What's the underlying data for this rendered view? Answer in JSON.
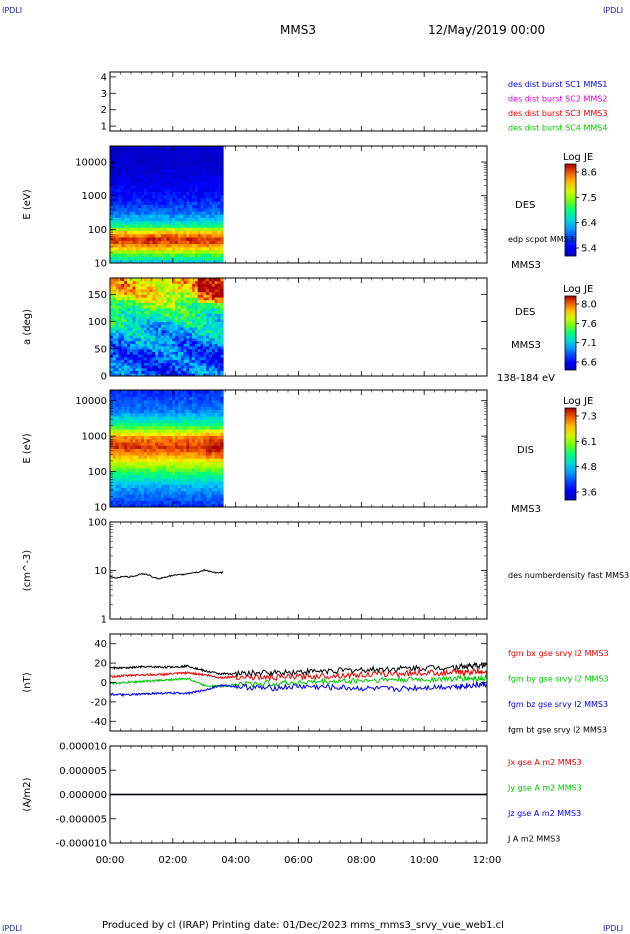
{
  "header": {
    "corner_left": "IPDLI",
    "corner_right": "IPDLI",
    "spacecraft": "MMS3",
    "date": "12/May/2019 00:00"
  },
  "footer": {
    "text": "Produced by cl (IRAP)   Printing date: 01/Dec/2023   mms_mms3_srvy_vue_web1.cl",
    "corner_left": "IPDLI",
    "corner_right": "IPDLI"
  },
  "colors": {
    "blue": "#0000ee",
    "magenta": "#dd00dd",
    "red": "#ee0000",
    "green": "#00cc00",
    "black": "#000000"
  },
  "chart_data": [
    {
      "type": "scatter",
      "id": "burst",
      "yticks": [
        "1",
        "2",
        "3",
        "4"
      ],
      "ylim": [
        0.7,
        4.3
      ],
      "legend": [
        {
          "text": "des dist burst SC1 MMS1",
          "color": "#0000ee"
        },
        {
          "text": "des dist burst SC2 MMS2",
          "color": "#dd00dd"
        },
        {
          "text": "des dist burst SC3 MMS3",
          "color": "#ee0000"
        },
        {
          "text": "des dist burst SC4 MMS4",
          "color": "#00cc00"
        }
      ]
    },
    {
      "type": "heatmap",
      "id": "des-energy",
      "ylabel": "E (eV)",
      "yscale": "log",
      "ylim": [
        10,
        30000
      ],
      "yticks": [
        "10",
        "100",
        "1000",
        "10000"
      ],
      "x_range_hours": [
        0,
        3.6
      ],
      "colorbar": {
        "title": "Log JE",
        "ticks": [
          "8.6",
          "7.5",
          "6.4",
          "5.4"
        ],
        "range": [
          5.4,
          8.6
        ]
      },
      "labels": [
        "DES",
        "edp scpot MMS3",
        "MMS3"
      ],
      "profile": [
        [
          10,
          6.5
        ],
        [
          18,
          7.2
        ],
        [
          30,
          8.0
        ],
        [
          50,
          8.5
        ],
        [
          80,
          8.0
        ],
        [
          130,
          7.0
        ],
        [
          200,
          6.5
        ],
        [
          400,
          6.1
        ],
        [
          1000,
          5.8
        ],
        [
          10000,
          5.4
        ],
        [
          30000,
          5.4
        ]
      ]
    },
    {
      "type": "heatmap",
      "id": "des-pitch",
      "ylabel": "a (deg)",
      "ylim": [
        0,
        180
      ],
      "yticks": [
        "0",
        "50",
        "100",
        "150"
      ],
      "x_range_hours": [
        0,
        3.6
      ],
      "colorbar": {
        "title": "Log JE",
        "ticks": [
          "8.0",
          "7.6",
          "7.1",
          "6.6"
        ],
        "range": [
          6.6,
          8.0
        ]
      },
      "labels": [
        "DES",
        "MMS3",
        "138-184 eV"
      ],
      "profile": [
        [
          0,
          6.9
        ],
        [
          40,
          6.9
        ],
        [
          90,
          7.1
        ],
        [
          130,
          7.4
        ],
        [
          160,
          7.7
        ],
        [
          180,
          7.7
        ]
      ]
    },
    {
      "type": "heatmap",
      "id": "dis-energy",
      "ylabel": "E (eV)",
      "yscale": "log",
      "ylim": [
        10,
        20000
      ],
      "yticks": [
        "10",
        "100",
        "1000",
        "10000"
      ],
      "x_range_hours": [
        0,
        3.6
      ],
      "colorbar": {
        "title": "Log JE",
        "ticks": [
          "7.3",
          "6.1",
          "4.8",
          "3.6"
        ],
        "range": [
          3.6,
          7.3
        ]
      },
      "labels": [
        "DIS",
        "MMS3"
      ],
      "profile": [
        [
          10,
          4.2
        ],
        [
          40,
          4.8
        ],
        [
          100,
          5.6
        ],
        [
          250,
          6.5
        ],
        [
          500,
          7.1
        ],
        [
          900,
          6.8
        ],
        [
          2000,
          5.5
        ],
        [
          5000,
          4.6
        ],
        [
          20000,
          4.2
        ]
      ]
    },
    {
      "type": "line",
      "id": "density",
      "ylabel": "(cm^-3)",
      "yscale": "log",
      "ylim": [
        1,
        100
      ],
      "yticks": [
        "1",
        "10",
        "100"
      ],
      "series": [
        {
          "name": "des numberdensity fast MMS3",
          "color": "#000000",
          "x": [
            0.0,
            0.2,
            0.4,
            0.6,
            0.8,
            1.0,
            1.2,
            1.4,
            1.6,
            1.8,
            2.0,
            2.2,
            2.4,
            2.6,
            2.8,
            3.0,
            3.2,
            3.4,
            3.6
          ],
          "y": [
            7.4,
            7.0,
            7.6,
            7.3,
            7.8,
            8.6,
            8.2,
            7.1,
            6.8,
            7.5,
            7.9,
            8.1,
            8.4,
            9.0,
            9.2,
            10.2,
            9.6,
            8.8,
            9.2
          ]
        }
      ]
    },
    {
      "type": "line",
      "id": "bfield",
      "ylabel": "(nT)",
      "ylim": [
        -50,
        50
      ],
      "yticks": [
        "-40",
        "-20",
        "0",
        "20",
        "40"
      ],
      "series": [
        {
          "name": "fgm bx gse srvy l2 MMS3",
          "color": "#ee0000",
          "x": [
            0,
            0.5,
            1.0,
            1.5,
            2.0,
            2.5,
            3.0,
            3.5,
            4.0,
            5.0,
            6.0,
            7.0,
            8.0,
            9.0,
            10.0,
            11.0,
            11.5,
            12.0
          ],
          "y": [
            6,
            7,
            8,
            8,
            9,
            10,
            8,
            5,
            6,
            5,
            6,
            7,
            8,
            9,
            10,
            10,
            11,
            12
          ]
        },
        {
          "name": "fgm by gse srvy l2 MMS3",
          "color": "#00cc00",
          "x": [
            0,
            0.5,
            1.0,
            1.5,
            2.0,
            2.5,
            3.0,
            3.5,
            4.0,
            5.0,
            6.0,
            7.0,
            8.0,
            9.0,
            10.0,
            11.0,
            11.5,
            12.0
          ],
          "y": [
            -1,
            0,
            1,
            2,
            3,
            4,
            -3,
            -4,
            -2,
            -1,
            0,
            1,
            2,
            3,
            3,
            4,
            4,
            5
          ]
        },
        {
          "name": "fgm bz gse srvy l2 MMS3",
          "color": "#0000ee",
          "x": [
            0,
            0.5,
            1.0,
            1.5,
            2.0,
            2.5,
            3.0,
            3.5,
            4.0,
            5.0,
            6.0,
            7.0,
            8.0,
            9.0,
            10.0,
            11.0,
            11.5,
            12.0
          ],
          "y": [
            -12,
            -13,
            -12,
            -11,
            -11,
            -11,
            -8,
            -3,
            -4,
            -6,
            -4,
            -5,
            -6,
            -7,
            -5,
            -4,
            -3,
            -2
          ]
        },
        {
          "name": "fgm bt gse srvy l2 MMS3",
          "color": "#000000",
          "x": [
            0,
            0.5,
            1.0,
            1.5,
            2.0,
            2.5,
            3.0,
            3.5,
            4.0,
            5.0,
            6.0,
            7.0,
            8.0,
            9.0,
            10.0,
            11.0,
            11.5,
            12.0
          ],
          "y": [
            15,
            15,
            16,
            16,
            16,
            17,
            12,
            9,
            9,
            10,
            11,
            12,
            13,
            14,
            15,
            16,
            17,
            18
          ]
        }
      ]
    },
    {
      "type": "line",
      "id": "current",
      "ylabel": "(A/m2)",
      "ylim": [
        -1e-05,
        1e-05
      ],
      "yticks": [
        "-0.000010",
        "-0.000005",
        "0.000000",
        "0.000005",
        "0.000010"
      ],
      "series": [
        {
          "name": "Jx gse A m2 MMS3",
          "color": "#ee0000",
          "x": [
            0,
            12
          ],
          "y": [
            0,
            0
          ]
        },
        {
          "name": "Jy gse A m2 MMS3",
          "color": "#00cc00",
          "x": [
            0,
            12
          ],
          "y": [
            0,
            0
          ]
        },
        {
          "name": "Jz gse A m2 MMS3",
          "color": "#0000ee",
          "x": [
            0,
            12
          ],
          "y": [
            0,
            0
          ]
        },
        {
          "name": "J A m2 MMS3",
          "color": "#000000",
          "x": [
            0,
            12
          ],
          "y": [
            0,
            0
          ]
        }
      ]
    }
  ],
  "xaxis": {
    "ticks": [
      "00:00",
      "02:00",
      "04:00",
      "06:00",
      "08:00",
      "10:00",
      "12:00"
    ],
    "range_hours": [
      0,
      12
    ]
  }
}
